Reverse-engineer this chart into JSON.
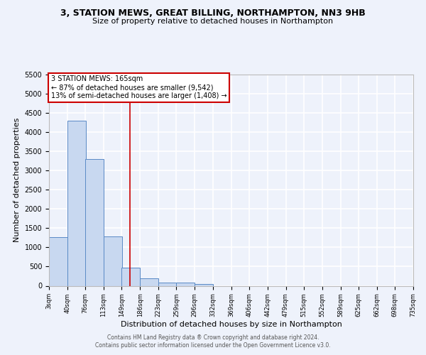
{
  "title1": "3, STATION MEWS, GREAT BILLING, NORTHAMPTON, NN3 9HB",
  "title2": "Size of property relative to detached houses in Northampton",
  "xlabel": "Distribution of detached houses by size in Northampton",
  "ylabel": "Number of detached properties",
  "footnote1": "Contains HM Land Registry data ® Crown copyright and database right 2024.",
  "footnote2": "Contains public sector information licensed under the Open Government Licence v3.0.",
  "annotation_title": "3 STATION MEWS: 165sqm",
  "annotation_line1": "← 87% of detached houses are smaller (9,542)",
  "annotation_line2": "13% of semi-detached houses are larger (1,408) →",
  "bar_left_edges": [
    3,
    40,
    76,
    113,
    149,
    186,
    223,
    259,
    296,
    332,
    369,
    406,
    442,
    479,
    515,
    552,
    589,
    625,
    662,
    698
  ],
  "bar_heights": [
    1270,
    4300,
    3300,
    1280,
    470,
    200,
    90,
    75,
    45,
    0,
    0,
    0,
    0,
    0,
    0,
    0,
    0,
    0,
    0,
    0
  ],
  "bin_width": 37,
  "bar_color": "#c8d8f0",
  "bar_edge_color": "#5a8ac6",
  "vline_x": 165,
  "vline_color": "#cc0000",
  "ylim": [
    0,
    5500
  ],
  "xlim": [
    3,
    735
  ],
  "xtick_positions": [
    3,
    40,
    76,
    113,
    149,
    186,
    223,
    259,
    296,
    332,
    369,
    406,
    442,
    479,
    515,
    552,
    589,
    625,
    662,
    698,
    735
  ],
  "xtick_labels": [
    "3sqm",
    "40sqm",
    "76sqm",
    "113sqm",
    "149sqm",
    "186sqm",
    "223sqm",
    "259sqm",
    "296sqm",
    "332sqm",
    "369sqm",
    "406sqm",
    "442sqm",
    "479sqm",
    "515sqm",
    "552sqm",
    "589sqm",
    "625sqm",
    "662sqm",
    "698sqm",
    "735sqm"
  ],
  "ytick_positions": [
    0,
    500,
    1000,
    1500,
    2000,
    2500,
    3000,
    3500,
    4000,
    4500,
    5000,
    5500
  ],
  "background_color": "#eef2fb",
  "grid_color": "#ffffff",
  "annotation_box_color": "#ffffff",
  "annotation_box_edge_color": "#cc0000",
  "title1_fontsize": 9.0,
  "title2_fontsize": 8.0,
  "xlabel_fontsize": 8.0,
  "ylabel_fontsize": 8.0,
  "xtick_fontsize": 6.0,
  "ytick_fontsize": 7.0,
  "footnote_fontsize": 5.5,
  "annotation_fontsize": 7.0
}
